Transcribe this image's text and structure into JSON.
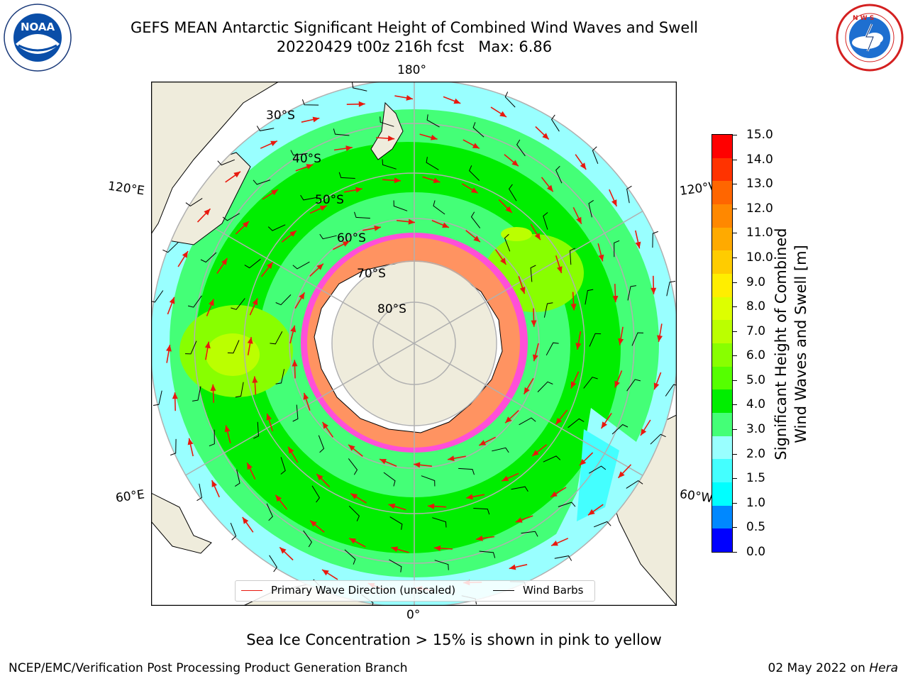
{
  "title": {
    "line1": "GEFS MEAN Antarctic Significant Height of Combined Wind Waves and Swell",
    "line2": "20220429 t00z 216h fcst   Max: 6.86"
  },
  "logos": {
    "left": {
      "name": "noaa-logo",
      "text": "NOAA",
      "ring_text": "NATIONAL OCEANIC AND ATMOSPHERIC ADMINISTRATION · U.S. DEPARTMENT OF COMMERCE"
    },
    "right": {
      "name": "nws-logo",
      "ring_text": "NATIONAL WEATHER SERVICE"
    }
  },
  "map": {
    "projection": "south polar stereographic",
    "meridian_labels": {
      "top": "180°",
      "bottom": "0°",
      "upper_left": "120°E",
      "lower_left": "60°E",
      "upper_right": "120°W",
      "lower_right": "60°W"
    },
    "latitude_labels": [
      "30°S",
      "40°S",
      "50°S",
      "60°S",
      "70°S",
      "80°S"
    ],
    "colors": {
      "land": "#efecdc",
      "ice_shelf": "#ffffff",
      "sea_ice": "#ff4fd8",
      "grid": "#b0b0b0",
      "arrow": "#e8190e",
      "barb": "#000000"
    }
  },
  "colorbar": {
    "title_line1": "Significant Height of Combined",
    "title_line2": "Wind Waves and Swell [m]",
    "tick_labels": [
      "15.0",
      "14.0",
      "13.0",
      "12.0",
      "11.0",
      "10.0",
      "9.0",
      "8.0",
      "7.0",
      "6.0",
      "5.0",
      "4.0",
      "3.0",
      "2.0",
      "1.5",
      "1.0",
      "0.5",
      "0.0"
    ],
    "colors_top_to_bottom": [
      "#ff0000",
      "#ff3300",
      "#ff6600",
      "#ff8800",
      "#ffaa00",
      "#ffcc00",
      "#ffee00",
      "#ddff00",
      "#bbff00",
      "#88ff00",
      "#55ff00",
      "#00ee00",
      "#44ff77",
      "#99ffff",
      "#44ffff",
      "#00ffff",
      "#0088ff",
      "#0000ff"
    ]
  },
  "legend": {
    "wave_direction_label": "Primary Wave Direction (unscaled)",
    "wind_barbs_label": "Wind Barbs",
    "wave_color": "#e8190e",
    "barb_color": "#000000"
  },
  "subtitle": "Sea Ice Concentration > 15% is shown in pink to yellow",
  "footer": {
    "left": "NCEP/EMC/Verification Post Processing Product Generation Branch",
    "right_prefix": "02 May 2022 on ",
    "right_host": "Hera"
  }
}
